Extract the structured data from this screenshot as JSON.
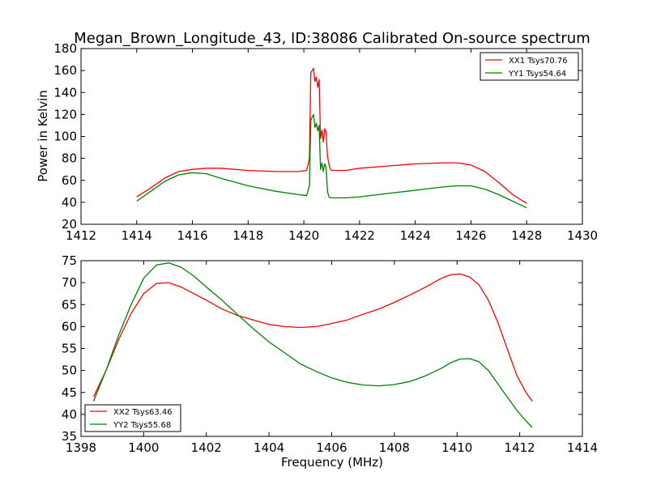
{
  "figure": {
    "title": "Megan_Brown_Longitude_43, ID:38086 Calibrated On-source spectrum"
  },
  "colors": {
    "red": "#ff0000",
    "green": "#008000"
  },
  "chart_data": [
    {
      "type": "line",
      "title": "Megan_Brown_Longitude_43, ID:38086 Calibrated On-source spectrum",
      "xlabel": "",
      "ylabel": "Power in Kelvin",
      "xlim": [
        1412,
        1430
      ],
      "ylim": [
        20,
        180
      ],
      "xticks": [
        "1412",
        "1414",
        "1416",
        "1418",
        "1420",
        "1422",
        "1424",
        "1426",
        "1428",
        "1430"
      ],
      "yticks": [
        "20",
        "40",
        "60",
        "80",
        "100",
        "120",
        "140",
        "160",
        "180"
      ],
      "grid": false,
      "legend": "top-right",
      "series": [
        {
          "name": "XX1 Tsys70.76",
          "color": "#ff0000",
          "x": [
            1414,
            1414.5,
            1415,
            1415.5,
            1416,
            1416.5,
            1417,
            1418,
            1419,
            1419.8,
            1420.1,
            1420.2,
            1420.25,
            1420.35,
            1420.4,
            1420.45,
            1420.5,
            1420.55,
            1420.6,
            1420.65,
            1420.7,
            1420.75,
            1420.8,
            1420.85,
            1420.9,
            1420.95,
            1421,
            1421.5,
            1422,
            1423,
            1424,
            1425,
            1425.5,
            1426,
            1426.5,
            1427,
            1427.5,
            1428
          ],
          "y": [
            45,
            53,
            62,
            68,
            70,
            71,
            71,
            69,
            68,
            68,
            69,
            80,
            158,
            162,
            150,
            154,
            145,
            152,
            98,
            106,
            95,
            107,
            104,
            82,
            75,
            70,
            69,
            69,
            71,
            73,
            75,
            76,
            76,
            74,
            68,
            58,
            47,
            39
          ]
        },
        {
          "name": "YY1 Tsys54.64",
          "color": "#008000",
          "x": [
            1414,
            1414.5,
            1415,
            1415.5,
            1416,
            1416.5,
            1417,
            1418,
            1419,
            1419.8,
            1420.1,
            1420.2,
            1420.25,
            1420.35,
            1420.4,
            1420.45,
            1420.5,
            1420.55,
            1420.6,
            1420.65,
            1420.7,
            1420.75,
            1420.8,
            1420.85,
            1420.9,
            1420.95,
            1421,
            1421.5,
            1422,
            1423,
            1424,
            1425,
            1425.5,
            1426,
            1426.5,
            1427,
            1427.5,
            1428
          ],
          "y": [
            41,
            50,
            59,
            65,
            67,
            66,
            62,
            55,
            50,
            47,
            46,
            55,
            115,
            120,
            108,
            112,
            105,
            110,
            70,
            76,
            68,
            75,
            72,
            50,
            45,
            44,
            44,
            44,
            45,
            48,
            51,
            54,
            55,
            55,
            52,
            47,
            41,
            35
          ]
        }
      ]
    },
    {
      "type": "line",
      "title": "",
      "xlabel": "Frequency (MHz)",
      "ylabel": "",
      "xlim": [
        1398,
        1414
      ],
      "ylim": [
        35,
        75
      ],
      "xticks": [
        "1398",
        "1400",
        "1402",
        "1404",
        "1406",
        "1408",
        "1410",
        "1412",
        "1414"
      ],
      "yticks": [
        "35",
        "40",
        "45",
        "50",
        "55",
        "60",
        "65",
        "70",
        "75"
      ],
      "grid": false,
      "legend": "bottom-left",
      "series": [
        {
          "name": "XX2 Tsys63.46",
          "color": "#ff0000",
          "x": [
            1398.4,
            1398.8,
            1399.2,
            1399.6,
            1400,
            1400.4,
            1400.8,
            1401.2,
            1401.6,
            1402,
            1402.5,
            1403,
            1403.5,
            1404,
            1404.5,
            1405,
            1405.5,
            1406,
            1406.5,
            1407,
            1407.5,
            1408,
            1408.5,
            1409,
            1409.5,
            1409.8,
            1410.1,
            1410.4,
            1410.7,
            1411,
            1411.3,
            1411.6,
            1411.9,
            1412.2,
            1412.4
          ],
          "y": [
            44,
            50,
            57,
            63,
            67.5,
            69.8,
            70,
            69,
            67.5,
            66,
            64,
            62.5,
            61.5,
            60.5,
            60,
            59.8,
            60,
            60.7,
            61.5,
            62.8,
            64,
            65.5,
            67.2,
            69,
            71,
            71.8,
            72,
            71.3,
            69.5,
            66,
            61,
            55,
            49,
            45,
            43
          ]
        },
        {
          "name": "YY2 Tsys55.68",
          "color": "#008000",
          "x": [
            1398.4,
            1398.8,
            1399.2,
            1399.6,
            1400,
            1400.4,
            1400.8,
            1401.2,
            1401.6,
            1402,
            1402.5,
            1403,
            1403.5,
            1404,
            1404.5,
            1405,
            1405.5,
            1406,
            1406.5,
            1407,
            1407.5,
            1408,
            1408.5,
            1409,
            1409.5,
            1409.8,
            1410.1,
            1410.4,
            1410.7,
            1411,
            1411.3,
            1411.6,
            1411.9,
            1412.2,
            1412.4
          ],
          "y": [
            43,
            50,
            58,
            65,
            71,
            74,
            74.5,
            73.5,
            71.5,
            69,
            66,
            62.7,
            59.5,
            56.5,
            54,
            51.5,
            49.8,
            48.3,
            47.3,
            46.7,
            46.5,
            46.8,
            47.5,
            48.8,
            50.5,
            51.8,
            52.6,
            52.7,
            52,
            50,
            47,
            44,
            41,
            38.5,
            37
          ]
        }
      ]
    }
  ]
}
